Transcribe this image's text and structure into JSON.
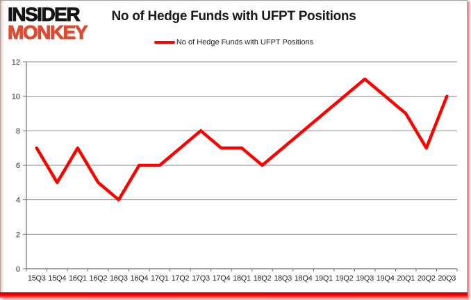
{
  "logo": {
    "line1": "INSIDER",
    "line2": "MONKEY"
  },
  "title": "No of Hedge Funds with UFPT Positions",
  "legend": {
    "label": "No of Hedge Funds with UFPT Positions",
    "marker_color": "#ff0000"
  },
  "colors": {
    "line": "#ff0000",
    "grid": "#8a8a8a",
    "axis": "#707070",
    "text": "#262626",
    "logo_black": "#141414",
    "logo_red": "#dd4b32",
    "bottom_bar": "#ff0f0f",
    "frame_border": "#a2a2a2"
  },
  "chart_data": {
    "type": "line",
    "title": "No of Hedge Funds with UFPT Positions",
    "xlabel": "",
    "ylabel": "",
    "categories": [
      "15Q3",
      "15Q4",
      "16Q1",
      "16Q2",
      "16Q3",
      "16Q4",
      "17Q1",
      "17Q2",
      "17Q3",
      "17Q4",
      "18Q1",
      "18Q2",
      "18Q3",
      "18Q4",
      "19Q1",
      "19Q2",
      "19Q3",
      "19Q4",
      "20Q1",
      "20Q2",
      "20Q3"
    ],
    "series": [
      {
        "name": "No of Hedge Funds with UFPT Positions",
        "color": "#ff0000",
        "values": [
          7,
          5,
          7,
          5,
          4,
          6,
          6,
          7,
          8,
          7,
          7,
          6,
          7,
          8,
          9,
          10,
          11,
          10,
          9,
          7,
          10
        ]
      }
    ],
    "ylim": [
      0,
      12
    ],
    "yticks": [
      0,
      2,
      4,
      6,
      8,
      10,
      12
    ],
    "ytick_step": 2,
    "grid": true,
    "legend_position": "top"
  }
}
